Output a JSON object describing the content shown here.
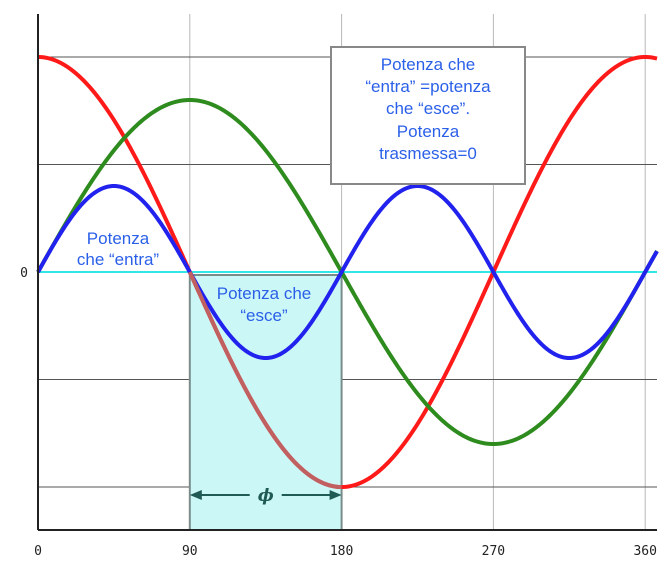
{
  "chart_data": {
    "type": "line",
    "x_ticks": [
      0,
      90,
      180,
      270,
      360
    ],
    "x_tick_labels": [
      "0",
      "90",
      "180",
      "270",
      "360"
    ],
    "y_zero_label": "0",
    "xlim": [
      0,
      367
    ],
    "ylim": [
      -1.2,
      1.2
    ],
    "grid": true,
    "series": [
      {
        "color": "#ff1a1a",
        "formula": "cos(x)",
        "amplitude": 1.0,
        "x_step": 2
      },
      {
        "color": "#2e8b1e",
        "formula": "sin(x)",
        "amplitude": 0.8,
        "x_step": 2
      },
      {
        "color": "#2222ee",
        "formula": "|sin(2x)|*sign(sin 2x)",
        "amplitude": 0.4,
        "x_step": 2
      }
    ],
    "baseline": {
      "color": "#33e6e6",
      "y": 0
    },
    "highlight_region": {
      "x0": 90,
      "x1": 180,
      "fill": "#ccf7f7",
      "stroke": "#7a8c8a"
    },
    "phi_arrow": {
      "x0": 90,
      "x1": 180,
      "label": "ϕ"
    },
    "annotations": [
      {
        "lines": [
          "Potenza",
          "che “entra”"
        ]
      },
      {
        "lines": [
          "Potenza che",
          "“esce”"
        ]
      }
    ],
    "info_box": {
      "lines": [
        "Potenza che",
        "“entra” =potenza",
        "che “esce”.",
        "Potenza",
        "trasmessa=0"
      ]
    }
  }
}
